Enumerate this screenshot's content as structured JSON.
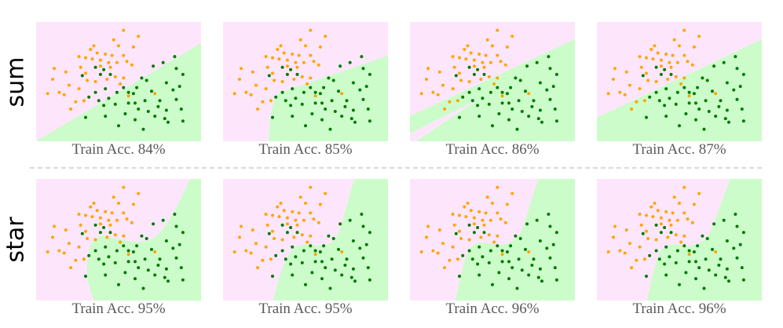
{
  "colors": {
    "class_a_region": "#fde6fb",
    "class_b_region": "#ccfcca",
    "class_a_points": "#ffa500",
    "class_b_points": "#007a00",
    "caption_text": "#5a5a5a",
    "divider": "#d9d9d9"
  },
  "rows": [
    {
      "label": "sum",
      "panels": [
        {
          "caption": "Train Acc. 84%",
          "accuracy_percent": 84
        },
        {
          "caption": "Train Acc. 85%",
          "accuracy_percent": 85
        },
        {
          "caption": "Train Acc. 86%",
          "accuracy_percent": 86
        },
        {
          "caption": "Train Acc. 87%",
          "accuracy_percent": 87
        }
      ]
    },
    {
      "label": "star",
      "panels": [
        {
          "caption": "Train Acc. 95%",
          "accuracy_percent": 95
        },
        {
          "caption": "Train Acc. 95%",
          "accuracy_percent": 95
        },
        {
          "caption": "Train Acc. 96%",
          "accuracy_percent": 96
        },
        {
          "caption": "Train Acc. 96%",
          "accuracy_percent": 96
        }
      ]
    }
  ],
  "chart_data": {
    "type": "scatter",
    "grid": false,
    "axes_visible": false,
    "xlim": [
      0,
      1
    ],
    "ylim": [
      0,
      1
    ],
    "series": [
      {
        "class": "orange",
        "color": "#ffa500",
        "points": [
          [
            0.53,
            0.93
          ],
          [
            0.62,
            0.88
          ],
          [
            0.47,
            0.85
          ],
          [
            0.35,
            0.8
          ],
          [
            0.5,
            0.8
          ],
          [
            0.59,
            0.79
          ],
          [
            0.33,
            0.77
          ],
          [
            0.37,
            0.74
          ],
          [
            0.42,
            0.73
          ],
          [
            0.46,
            0.72
          ],
          [
            0.53,
            0.72
          ],
          [
            0.26,
            0.71
          ],
          [
            0.3,
            0.7
          ],
          [
            0.34,
            0.69
          ],
          [
            0.39,
            0.68
          ],
          [
            0.44,
            0.66
          ],
          [
            0.49,
            0.66
          ],
          [
            0.55,
            0.67
          ],
          [
            0.58,
            0.64
          ],
          [
            0.39,
            0.63
          ],
          [
            0.45,
            0.62
          ],
          [
            0.27,
            0.62
          ],
          [
            0.11,
            0.61
          ],
          [
            0.18,
            0.58
          ],
          [
            0.3,
            0.57
          ],
          [
            0.48,
            0.54
          ],
          [
            0.53,
            0.53
          ],
          [
            0.43,
            0.52
          ],
          [
            0.1,
            0.52
          ],
          [
            0.31,
            0.51
          ],
          [
            0.36,
            0.5
          ],
          [
            0.51,
            0.48
          ],
          [
            0.2,
            0.47
          ],
          [
            0.26,
            0.44
          ],
          [
            0.14,
            0.41
          ],
          [
            0.07,
            0.4
          ],
          [
            0.17,
            0.39
          ],
          [
            0.29,
            0.34
          ],
          [
            0.24,
            0.33
          ],
          [
            0.72,
            0.4
          ],
          [
            0.56,
            0.38
          ],
          [
            0.21,
            0.27
          ]
        ]
      },
      {
        "class": "green",
        "color": "#007a00",
        "points": [
          [
            0.84,
            0.71
          ],
          [
            0.77,
            0.66
          ],
          [
            0.71,
            0.63
          ],
          [
            0.85,
            0.61
          ],
          [
            0.36,
            0.62
          ],
          [
            0.41,
            0.6
          ],
          [
            0.39,
            0.56
          ],
          [
            0.45,
            0.56
          ],
          [
            0.28,
            0.55
          ],
          [
            0.64,
            0.53
          ],
          [
            0.67,
            0.51
          ],
          [
            0.79,
            0.49
          ],
          [
            0.87,
            0.46
          ],
          [
            0.42,
            0.44
          ],
          [
            0.53,
            0.45
          ],
          [
            0.61,
            0.45
          ],
          [
            0.7,
            0.42
          ],
          [
            0.83,
            0.43
          ],
          [
            0.49,
            0.41
          ],
          [
            0.56,
            0.41
          ],
          [
            0.59,
            0.4
          ],
          [
            0.36,
            0.41
          ],
          [
            0.32,
            0.37
          ],
          [
            0.44,
            0.36
          ],
          [
            0.6,
            0.32
          ],
          [
            0.66,
            0.34
          ],
          [
            0.75,
            0.34
          ],
          [
            0.85,
            0.35
          ],
          [
            0.41,
            0.3
          ],
          [
            0.48,
            0.31
          ],
          [
            0.62,
            0.27
          ],
          [
            0.68,
            0.25
          ],
          [
            0.54,
            0.23
          ],
          [
            0.79,
            0.26
          ],
          [
            0.88,
            0.27
          ],
          [
            0.72,
            0.21
          ],
          [
            0.78,
            0.19
          ],
          [
            0.6,
            0.18
          ],
          [
            0.5,
            0.13
          ],
          [
            0.42,
            0.21
          ],
          [
            0.3,
            0.2
          ],
          [
            0.65,
            0.1
          ],
          [
            0.8,
            0.16
          ],
          [
            0.89,
            0.17
          ],
          [
            0.74,
            0.29
          ],
          [
            0.56,
            0.32
          ],
          [
            0.38,
            0.34
          ],
          [
            0.89,
            0.56
          ]
        ]
      }
    ],
    "panels": [
      {
        "row": "sum",
        "train_accuracy_percent": 84
      },
      {
        "row": "sum",
        "train_accuracy_percent": 85
      },
      {
        "row": "sum",
        "train_accuracy_percent": 86
      },
      {
        "row": "sum",
        "train_accuracy_percent": 87
      },
      {
        "row": "star",
        "train_accuracy_percent": 95
      },
      {
        "row": "star",
        "train_accuracy_percent": 95
      },
      {
        "row": "star",
        "train_accuracy_percent": 96
      },
      {
        "row": "star",
        "train_accuracy_percent": 96
      }
    ]
  }
}
